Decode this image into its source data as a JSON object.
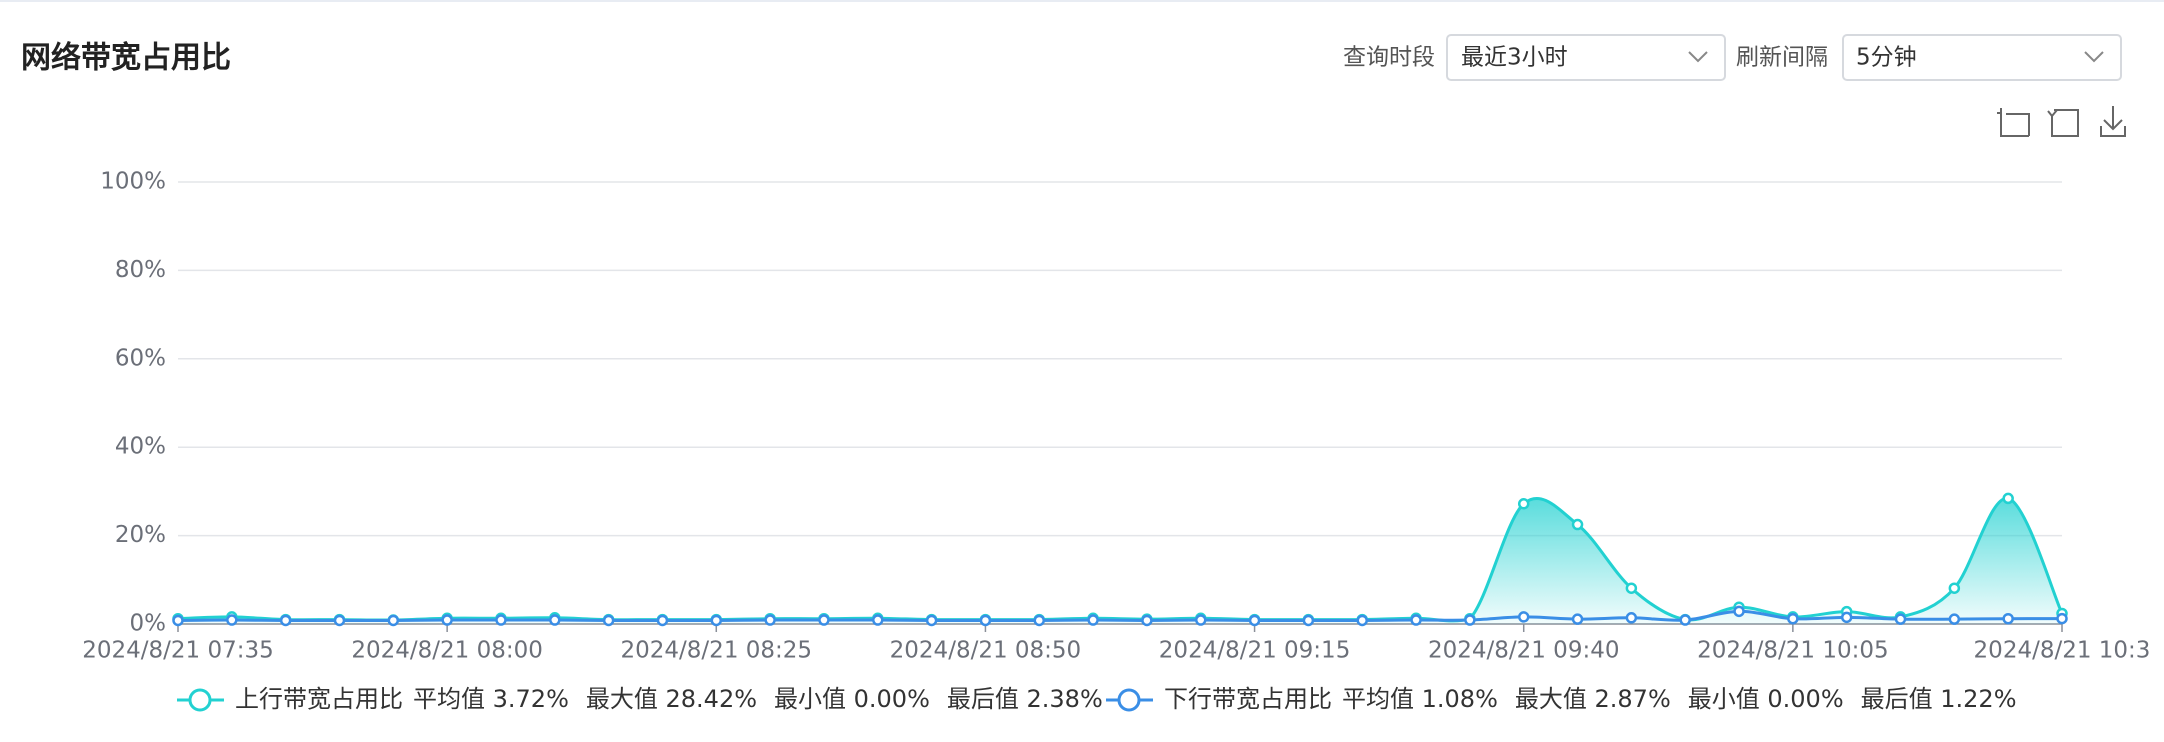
{
  "header": {
    "title": "网络带宽占用比"
  },
  "controls": [
    {
      "label": "查询时段",
      "value": "最近3小时"
    },
    {
      "label": "刷新间隔",
      "value": "5分钟"
    }
  ],
  "chart_data": {
    "type": "line",
    "categories": [
      "2024/8/21 07:35",
      null,
      null,
      null,
      null,
      "2024/8/21 08:00",
      null,
      null,
      null,
      null,
      "2024/8/21 08:25",
      null,
      null,
      null,
      null,
      "2024/8/21 08:50",
      null,
      null,
      null,
      null,
      "2024/8/21 09:15",
      null,
      null,
      null,
      null,
      "2024/8/21 09:40",
      null,
      null,
      null,
      null,
      "2024/8/21 10:05",
      null,
      null,
      null,
      null,
      "2024/8/21 10:3"
    ],
    "ylim": [
      0,
      100
    ],
    "yticks": [
      {
        "value": 0,
        "label": "0%"
      },
      {
        "value": 20,
        "label": "20%"
      },
      {
        "value": 40,
        "label": "40%"
      },
      {
        "value": 60,
        "label": "60%"
      },
      {
        "value": 80,
        "label": "80%"
      },
      {
        "value": 100,
        "label": "100%"
      }
    ],
    "grid": true,
    "series": [
      {
        "name": "上行带宽占用比",
        "color": "#22d1d1",
        "area": true,
        "stats": [
          "平均值 3.72%",
          "最大值 28.42%",
          "最小值 0.00%",
          "最后值 2.38%"
        ],
        "values": [
          1.2,
          1.6,
          1.0,
          1.0,
          0.9,
          1.3,
          1.3,
          1.4,
          1.0,
          1.0,
          1.0,
          1.2,
          1.2,
          1.3,
          1.0,
          1.0,
          1.0,
          1.3,
          1.1,
          1.3,
          1.0,
          1.0,
          1.0,
          1.3,
          1.2,
          27.2,
          22.5,
          8.1,
          1.0,
          3.8,
          1.6,
          2.8,
          1.6,
          8.1,
          28.42,
          2.38
        ]
      },
      {
        "name": "下行带宽占用比",
        "color": "#3a8ee6",
        "area": false,
        "stats": [
          "平均值 1.08%",
          "最大值 2.87%",
          "最小值 0.00%",
          "最后值 1.22%"
        ],
        "values": [
          0.8,
          0.9,
          0.8,
          0.8,
          0.8,
          0.9,
          0.9,
          0.9,
          0.8,
          0.8,
          0.8,
          0.9,
          0.9,
          0.9,
          0.8,
          0.8,
          0.8,
          0.9,
          0.8,
          0.9,
          0.8,
          0.8,
          0.8,
          0.9,
          0.9,
          1.6,
          1.1,
          1.4,
          0.9,
          2.87,
          1.2,
          1.5,
          1.1,
          1.1,
          1.2,
          1.22
        ]
      }
    ]
  }
}
